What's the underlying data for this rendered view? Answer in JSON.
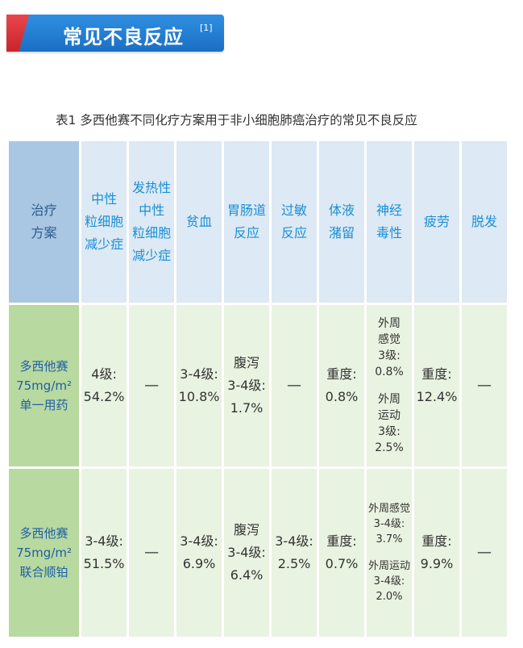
{
  "banner": {
    "title": "常见不良反应",
    "ref": "[1]"
  },
  "caption": "表1 多西他赛不同化疗方案用于非小细胞肺癌治疗的常见不良反应",
  "table": {
    "corner": [
      "治疗",
      "方案"
    ],
    "headers": [
      [
        "中性",
        "粒细胞",
        "减少症"
      ],
      [
        "发热性",
        "中性",
        "粒细胞",
        "减少症"
      ],
      [
        "贫血"
      ],
      [
        "胃肠道",
        "反应"
      ],
      [
        "过敏",
        "反应"
      ],
      [
        "体液",
        "潴留"
      ],
      [
        "神经",
        "毒性"
      ],
      [
        "疲劳"
      ],
      [
        "脱发"
      ]
    ],
    "rows": [
      {
        "label": [
          "多西他赛",
          "75mg/m²",
          "单一用药"
        ],
        "cells": [
          [
            "4级:",
            "54.2%"
          ],
          [
            "—"
          ],
          [
            "3-4级:",
            "10.8%"
          ],
          [
            "腹泻",
            "3-4级:",
            "1.7%"
          ],
          [
            "—"
          ],
          [
            "重度:",
            "0.8%"
          ],
          [
            "外周",
            "感觉",
            "3级:",
            "0.8%",
            "外周",
            "运动",
            "3级:",
            "2.5%"
          ],
          [
            "重度:",
            "12.4%"
          ],
          [
            "—"
          ]
        ]
      },
      {
        "label": [
          "多西他赛",
          "75mg/m²",
          "联合顺铂"
        ],
        "cells": [
          [
            "3-4级:",
            "51.5%"
          ],
          [
            "—"
          ],
          [
            "3-4级:",
            "6.9%"
          ],
          [
            "腹泻",
            "3-4级:",
            "6.4%"
          ],
          [
            "3-4级:",
            "2.5%"
          ],
          [
            "重度:",
            "0.7%"
          ],
          [
            "外周感觉",
            "3-4级:",
            "3.7%",
            "外周运动",
            "3-4级:",
            "2.0%"
          ],
          [
            "重度:",
            "9.9%"
          ],
          [
            "—"
          ]
        ]
      }
    ]
  }
}
